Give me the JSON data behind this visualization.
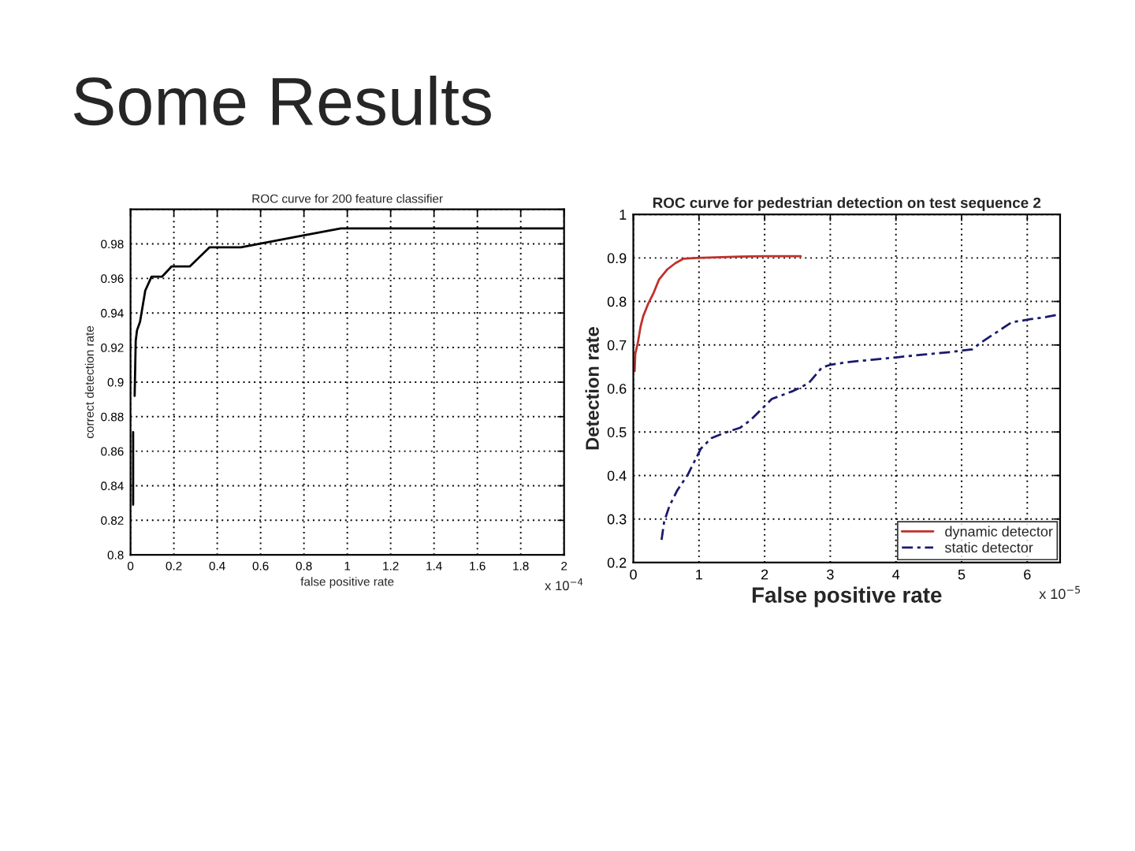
{
  "chart_data": [
    {
      "type": "line",
      "title": "ROC curve for 200 feature classifier",
      "xlabel": "false positive rate",
      "ylabel": "correct detection rate",
      "series": [
        {
          "color": "#000000",
          "line_style": "solid",
          "x": [
            0.012,
            0.012,
            0.015,
            0.019,
            0.024,
            0.03,
            0.044,
            0.068,
            0.097,
            0.145,
            0.19,
            0.274,
            0.364,
            0.509,
            0.8,
            0.97,
            2
          ],
          "values": [
            0.829,
            0.871,
            null,
            0.892,
            0.924,
            0.93,
            0.935,
            0.953,
            0.961,
            0.961,
            0.967,
            0.967,
            0.978,
            0.978,
            0.985,
            0.989,
            0.989
          ]
        }
      ],
      "xlim": [
        0,
        2
      ],
      "xticks": [
        0,
        0.2,
        0.4,
        0.6,
        0.8,
        1,
        1.2,
        1.4,
        1.6,
        1.8,
        2
      ],
      "ylim": [
        0.8,
        1
      ],
      "yticks": [
        0.8,
        0.82,
        0.84,
        0.86,
        0.88,
        0.9,
        0.92,
        0.94,
        0.96,
        0.98,
        {
          "value": 1,
          "label": null
        }
      ],
      "grid": true,
      "annotations": [
        "Some Results",
        "x 10$^{−4}$"
      ]
    },
    {
      "type": "line",
      "title": "ROC curve for pedestrian detection on test sequence 2",
      "xlabel": "False positive rate",
      "ylabel": "Detection rate",
      "series": [
        {
          "name": "dynamic detector",
          "color": "#c0302a",
          "line_style": "solid",
          "x": [
            0.02,
            0.03,
            0.07,
            0.11,
            0.15,
            0.23,
            0.31,
            0.39,
            0.52,
            0.64,
            0.76,
            0.96,
            1.63,
            1.99,
            2.55
          ],
          "values": [
            0.64,
            0.68,
            0.706,
            0.742,
            0.766,
            0.796,
            0.82,
            0.85,
            0.874,
            0.888,
            0.898,
            0.9,
            0.903,
            0.904,
            0.904
          ]
        },
        {
          "name": "static detector",
          "color": "#1a1a6e",
          "line_style": "dashed",
          "x": [
            0.43,
            0.47,
            0.55,
            0.67,
            0.83,
            0.95,
            1.03,
            1.19,
            1.39,
            1.63,
            1.79,
            1.99,
            2.11,
            2.43,
            2.67,
            2.87,
            2.99,
            3.23,
            3.63,
            4.03,
            4.43,
            4.84,
            5.16,
            5.32,
            5.56,
            5.76,
            6.04,
            6.28,
            6.48
          ],
          "values": [
            0.252,
            0.294,
            0.33,
            0.366,
            0.402,
            0.438,
            0.462,
            0.486,
            0.498,
            0.51,
            0.528,
            0.558,
            0.576,
            0.594,
            0.612,
            0.648,
            0.654,
            0.66,
            0.666,
            0.672,
            0.678,
            0.684,
            0.69,
            0.708,
            0.732,
            0.752,
            0.759,
            0.764,
            0.77
          ]
        }
      ],
      "xlim": [
        0,
        6.5
      ],
      "xticks": [
        0,
        1,
        2,
        3,
        4,
        5,
        6
      ],
      "ylim": [
        0.2,
        1
      ],
      "yticks": [
        0.2,
        0.3,
        0.4,
        0.5,
        0.6,
        0.7,
        0.8,
        0.9,
        1
      ],
      "grid": true,
      "legend": "bottom right",
      "annotations": [
        "x 10$^{−5}$"
      ]
    }
  ]
}
